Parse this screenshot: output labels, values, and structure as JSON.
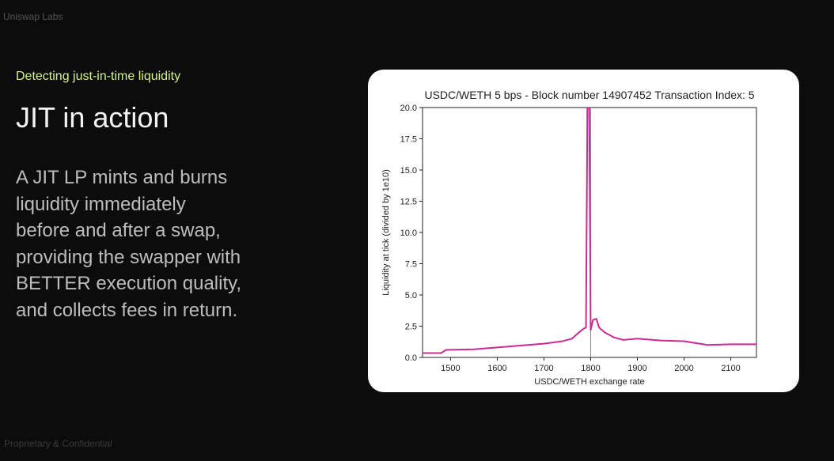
{
  "header": {
    "brand": "Uniswap Labs"
  },
  "slide": {
    "kicker": "Detecting just-in-time liquidity",
    "title": "JIT in action",
    "body": [
      "A JIT LP mints and burns",
      "liquidity immediately",
      "before and after a swap,",
      "providing the swapper with",
      "BETTER execution quality,",
      "and collects fees in return."
    ]
  },
  "footer": "Proprietary & Confidential",
  "chart_data": {
    "type": "line",
    "title": "USDC/WETH 5 bps - Block number 14907452 Transaction Index: 5",
    "x_label": "USDC/WETH exchange rate",
    "y_label": "Liquidity at tick (divided by 1e10)",
    "x": [
      1440,
      1480,
      1490,
      1550,
      1600,
      1650,
      1700,
      1740,
      1760,
      1775,
      1785,
      1790,
      1793,
      1797,
      1800,
      1805,
      1812,
      1818,
      1830,
      1850,
      1870,
      1900,
      1950,
      2000,
      2050,
      2100,
      2155
    ],
    "series": [
      {
        "color": "#cc2a93",
        "values": [
          0.35,
          0.35,
          0.6,
          0.65,
          0.8,
          0.95,
          1.1,
          1.3,
          1.5,
          2.0,
          2.3,
          2.4,
          20,
          20,
          2.2,
          3.0,
          3.1,
          2.4,
          2.0,
          1.6,
          1.4,
          1.5,
          1.35,
          1.3,
          1.0,
          1.05,
          1.05
        ]
      }
    ],
    "vline": 1800,
    "xlim": [
      1440,
      2155
    ],
    "xticks": [
      1500,
      1600,
      1700,
      1800,
      1900,
      2000,
      2100
    ],
    "ylim": [
      0,
      20
    ],
    "yticks": [
      {
        "value": 0,
        "label": "0.0"
      },
      2.5,
      {
        "value": 5,
        "label": "5.0"
      },
      7.5,
      {
        "value": 10,
        "label": "10.0"
      },
      12.5,
      {
        "value": 15,
        "label": "15.0"
      },
      17.5,
      {
        "value": 20,
        "label": "20.0"
      }
    ]
  }
}
